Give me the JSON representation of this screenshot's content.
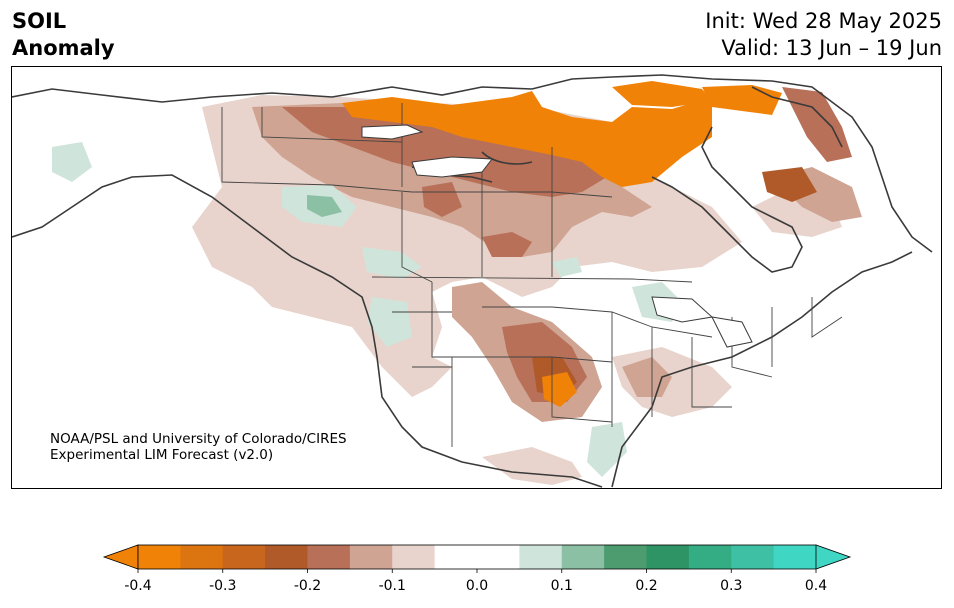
{
  "title": {
    "line1": "SOIL",
    "line2": "Anomaly",
    "init": "Init: Wed 28 May 2025",
    "valid": "Valid: 13 Jun – 19 Jun"
  },
  "credit": {
    "line1": "NOAA/PSL and University of Colorado/CIRES",
    "line2": "Experimental LIM Forecast (v2.0)"
  },
  "colorbar": {
    "ticks": [
      "-0.4",
      "-0.3",
      "-0.2",
      "-0.1",
      "0.0",
      "0.1",
      "0.2",
      "0.3",
      "0.4"
    ],
    "colors": [
      "#f08208",
      "#dc7410",
      "#c8661e",
      "#b05a2a",
      "#b87058",
      "#cfa492",
      "#e8d4cc",
      "#ffffff",
      "#ffffff",
      "#cfe4da",
      "#8cc0a4",
      "#4c9c70",
      "#2e9466",
      "#34ac84",
      "#3ec0a4",
      "#40d6c4"
    ]
  }
}
